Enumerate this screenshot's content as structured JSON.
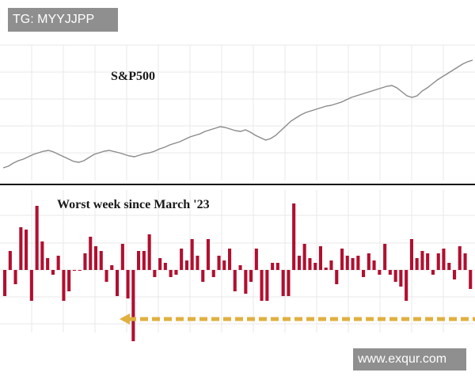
{
  "watermarks": {
    "top_left": "TG: MYYJJPP",
    "bottom_right": "www.exqur.com"
  },
  "colors": {
    "price_line": "#8a8a8a",
    "up_bar": "#b01030",
    "down_bar": "#b01030",
    "arrow": "#e0b040",
    "divider": "#111111",
    "grid": "#e8e8e8"
  },
  "chart_data": [
    {
      "type": "line",
      "title": "S&P500",
      "xlabel": "",
      "ylabel": "",
      "grid": true,
      "values": [
        4090,
        4110,
        4150,
        4180,
        4200,
        4230,
        4260,
        4280,
        4300,
        4310,
        4290,
        4260,
        4230,
        4200,
        4170,
        4160,
        4180,
        4220,
        4260,
        4280,
        4300,
        4310,
        4295,
        4280,
        4260,
        4240,
        4230,
        4250,
        4270,
        4280,
        4300,
        4330,
        4350,
        4380,
        4400,
        4420,
        4450,
        4480,
        4500,
        4520,
        4550,
        4570,
        4590,
        4610,
        4600,
        4580,
        4560,
        4550,
        4570,
        4540,
        4500,
        4470,
        4440,
        4460,
        4500,
        4560,
        4620,
        4680,
        4720,
        4760,
        4790,
        4810,
        4830,
        4850,
        4870,
        4880,
        4900,
        4920,
        4950,
        4980,
        5000,
        5020,
        5040,
        5060,
        5080,
        5100,
        5120,
        5130,
        5100,
        5050,
        5000,
        4980,
        5000,
        5060,
        5100,
        5150,
        5200,
        5240,
        5280,
        5320,
        5360,
        5400,
        5430,
        5450
      ]
    },
    {
      "type": "bar",
      "title": "Worst week since March '23",
      "xlabel": "",
      "ylabel": "",
      "grid": true,
      "values": [
        -1.1,
        0.8,
        -0.6,
        1.8,
        1.7,
        -1.3,
        2.7,
        1.2,
        0.5,
        -0.2,
        0.6,
        -1.3,
        -0.9,
        0,
        0,
        0.7,
        1.4,
        1.0,
        0.8,
        -0.5,
        0.2,
        -1.1,
        1.1,
        -1.2,
        -3.0,
        0.8,
        0.8,
        1.5,
        -0.3,
        0.5,
        0.3,
        -0.3,
        -0.2,
        0.9,
        0.4,
        1.3,
        0.6,
        -0.5,
        1.3,
        -0.3,
        0.6,
        0.4,
        0.9,
        -0.9,
        0.2,
        -1.0,
        -0.5,
        0.9,
        -1.3,
        -1.3,
        0.3,
        0.3,
        -1.1,
        -1.1,
        2.8,
        0.6,
        1.1,
        0.5,
        0.3,
        1.0,
        0.1,
        0.4,
        -0.6,
        0.9,
        0.6,
        0.5,
        0.6,
        -0.3,
        0.7,
        0.4,
        -0.2,
        1.1,
        -0.2,
        -0.5,
        -0.7,
        -1.3,
        1.3,
        0.5,
        0.8,
        0.7,
        -0.2,
        0.7,
        0.9,
        0.3,
        -0.4,
        1.0,
        0.7,
        -0.8
      ],
      "annotation": "arrow"
    }
  ]
}
